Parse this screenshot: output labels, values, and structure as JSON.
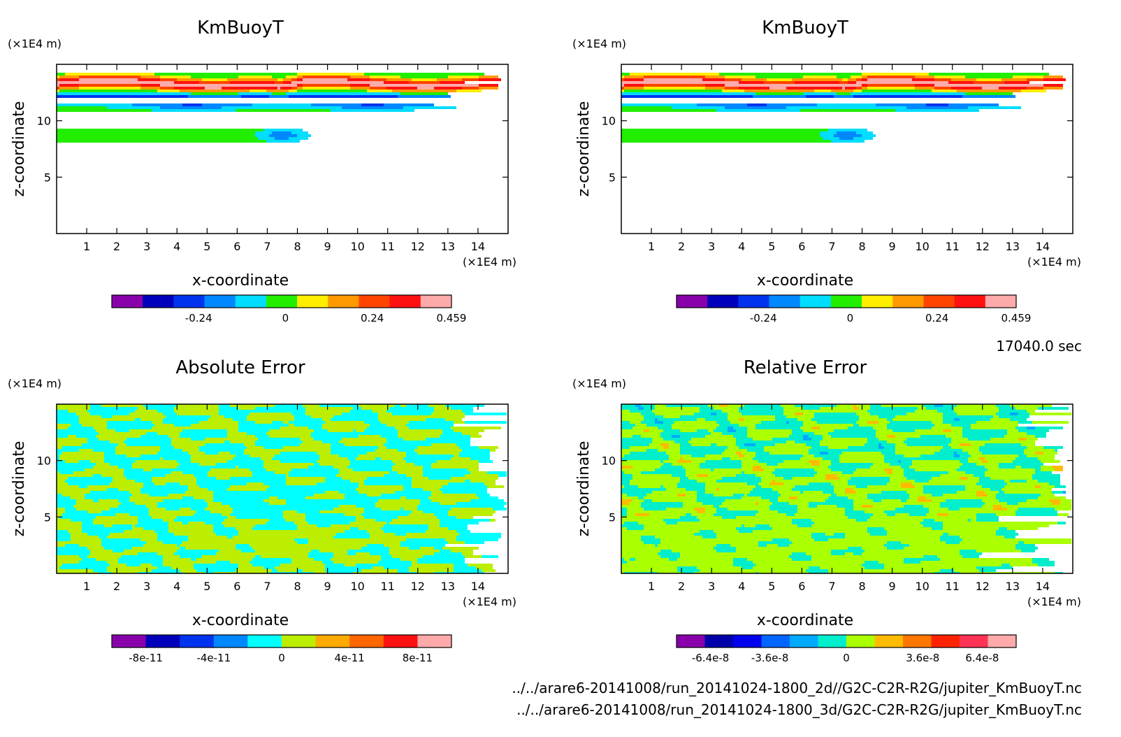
{
  "time_label": "17040.0 sec",
  "files": [
    "../../arare6-20141008/run_20141024-1800_2d//G2C-C2R-R2G/jupiter_KmBuoyT.nc",
    "../../arare6-20141008/run_20141024-1800_3d/G2C-C2R-R2G/jupiter_KmBuoyT.nc"
  ],
  "chart_data": [
    {
      "type": "heatmap",
      "title": "KmBuoyT",
      "xlabel": "x-coordinate",
      "ylabel": "z-coordinate",
      "x_unit": "(×1E4 m)",
      "y_unit": "(×1E4 m)",
      "xlim": [
        0,
        15
      ],
      "ylim": [
        0,
        15
      ],
      "xticks": [
        "1",
        "2",
        "3",
        "4",
        "5",
        "6",
        "7",
        "8",
        "9",
        "10",
        "11",
        "12",
        "13",
        "14"
      ],
      "yticks": [
        "5",
        "10"
      ],
      "colorbar": {
        "colors": [
          "#8800aa",
          "#0000bb",
          "#0033ee",
          "#0088ff",
          "#00ddff",
          "#22ee00",
          "#ffee00",
          "#ff9900",
          "#ff4400",
          "#ff1111",
          "#ffaaaa"
        ],
        "labels": [
          "-0.24",
          "0",
          "0.24",
          "0.459"
        ],
        "min": -0.48,
        "max": 0.459
      }
    },
    {
      "type": "heatmap",
      "title": "KmBuoyT",
      "xlabel": "x-coordinate",
      "ylabel": "z-coordinate",
      "x_unit": "(×1E4 m)",
      "y_unit": "(×1E4 m)",
      "xlim": [
        0,
        15
      ],
      "ylim": [
        0,
        15
      ],
      "xticks": [
        "1",
        "2",
        "3",
        "4",
        "5",
        "6",
        "7",
        "8",
        "9",
        "10",
        "11",
        "12",
        "13",
        "14"
      ],
      "yticks": [
        "5",
        "10"
      ],
      "colorbar": {
        "colors": [
          "#8800aa",
          "#0000bb",
          "#0033ee",
          "#0088ff",
          "#00ddff",
          "#22ee00",
          "#ffee00",
          "#ff9900",
          "#ff4400",
          "#ff1111",
          "#ffaaaa"
        ],
        "labels": [
          "-0.24",
          "0",
          "0.24",
          "0.459"
        ],
        "min": -0.48,
        "max": 0.459
      }
    },
    {
      "type": "heatmap",
      "title": "Absolute Error",
      "xlabel": "x-coordinate",
      "ylabel": "z-coordinate",
      "x_unit": "(×1E4 m)",
      "y_unit": "(×1E4 m)",
      "xlim": [
        0,
        15
      ],
      "ylim": [
        0,
        15
      ],
      "xticks": [
        "1",
        "2",
        "3",
        "4",
        "5",
        "6",
        "7",
        "8",
        "9",
        "10",
        "11",
        "12",
        "13",
        "14"
      ],
      "yticks": [
        "5",
        "10"
      ],
      "colorbar": {
        "colors": [
          "#8800aa",
          "#0000bb",
          "#0033ee",
          "#0088ff",
          "#00ffff",
          "#bbee00",
          "#ffaa00",
          "#ff6600",
          "#ff1111",
          "#ffaaaa"
        ],
        "labels": [
          "-8e-11",
          "-4e-11",
          "0",
          "4e-11",
          "8e-11"
        ],
        "min": -1e-10,
        "max": 1e-10
      }
    },
    {
      "type": "heatmap",
      "title": "Relative Error",
      "xlabel": "x-coordinate",
      "ylabel": "z-coordinate",
      "x_unit": "(×1E4 m)",
      "y_unit": "(×1E4 m)",
      "xlim": [
        0,
        15
      ],
      "ylim": [
        0,
        15
      ],
      "xticks": [
        "1",
        "2",
        "3",
        "4",
        "5",
        "6",
        "7",
        "8",
        "9",
        "10",
        "11",
        "12",
        "13",
        "14"
      ],
      "yticks": [
        "5",
        "10"
      ],
      "colorbar": {
        "colors": [
          "#8800aa",
          "#0000aa",
          "#0000ee",
          "#0066ff",
          "#00aaff",
          "#00eecc",
          "#aaff00",
          "#ffbb00",
          "#ff7700",
          "#ff2200",
          "#ff3355",
          "#ffaaaa"
        ],
        "labels": [
          "-6.4e-8",
          "-3.6e-8",
          "0",
          "3.6e-8",
          "6.4e-8"
        ],
        "min": -8e-08,
        "max": 8e-08
      }
    }
  ]
}
